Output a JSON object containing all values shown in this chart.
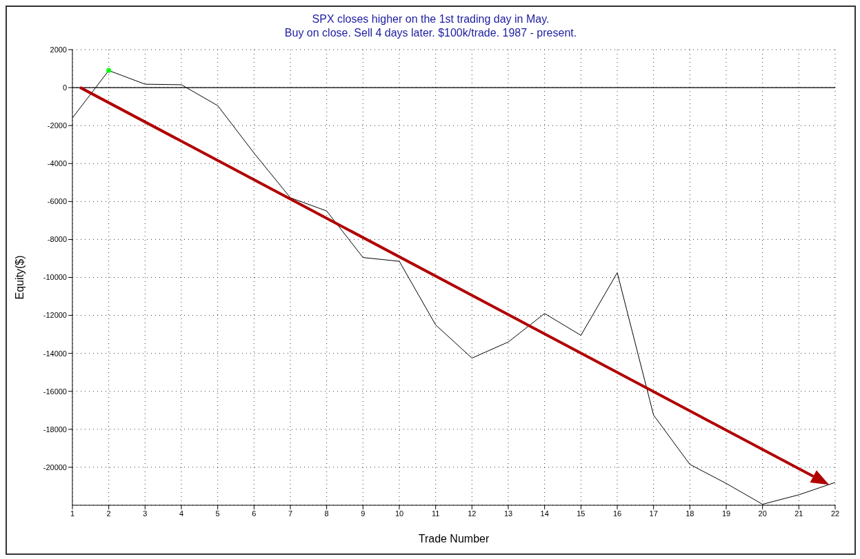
{
  "chart_data": {
    "type": "line",
    "title": "SPX closes higher on the 1st trading day in May.",
    "subtitle": "Buy on close. Sell 4 days later. $100k/trade. 1987 - present.",
    "xlabel": "Trade Number",
    "ylabel": "Equity($)",
    "x": [
      1,
      2,
      3,
      4,
      5,
      6,
      7,
      8,
      9,
      10,
      11,
      12,
      13,
      14,
      15,
      16,
      17,
      18,
      19,
      20,
      21,
      22
    ],
    "series": [
      {
        "color": "#000000",
        "values": [
          -1600,
          900,
          180,
          150,
          -950,
          -3450,
          -5800,
          -6500,
          -8950,
          -9150,
          -12500,
          -14250,
          -13400,
          -11900,
          -13050,
          -9750,
          -17250,
          -19850,
          -20850,
          -21950,
          -21450,
          -20800
        ]
      },
      {
        "type": "scatter",
        "color": "#00ff00",
        "values": [
          null,
          900,
          null,
          null,
          null,
          null,
          null,
          null,
          null,
          null,
          null,
          null,
          null,
          null,
          null,
          null,
          null,
          null,
          null,
          null,
          null,
          null
        ]
      }
    ],
    "xlim": [
      1,
      22
    ],
    "xticks": [
      1,
      2,
      3,
      4,
      5,
      6,
      7,
      8,
      9,
      10,
      11,
      12,
      13,
      14,
      15,
      16,
      17,
      18,
      19,
      20,
      21,
      22
    ],
    "ylim": [
      -22000,
      2000
    ],
    "yticks": [
      -20000,
      -18000,
      -16000,
      -14000,
      -12000,
      -10000,
      -8000,
      -6000,
      -4000,
      -2000,
      0,
      2000
    ],
    "grid": true,
    "line_style": "solid",
    "ref_lines": [
      {
        "axis": "y",
        "value": 0,
        "color": "#000000"
      }
    ]
  }
}
